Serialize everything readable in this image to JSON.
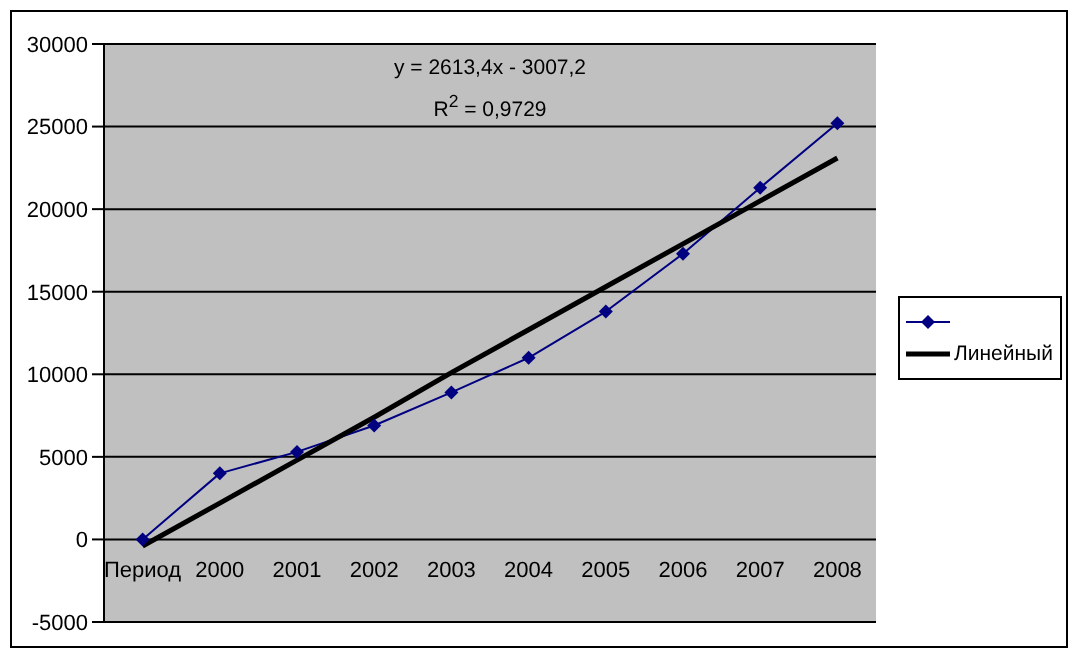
{
  "chart_data": {
    "type": "line",
    "categories": [
      "Период",
      "2000",
      "2001",
      "2002",
      "2003",
      "2004",
      "2005",
      "2006",
      "2007",
      "2008"
    ],
    "series": [
      {
        "color": "#000080",
        "values": [
          0,
          4000,
          5300,
          6900,
          8900,
          11000,
          13800,
          17300,
          21300,
          25200
        ]
      },
      {
        "name": "Линейный",
        "color": "#000000",
        "marker": "none",
        "values": [
          -400,
          2200,
          4800,
          7400,
          10100,
          12700,
          15300,
          17900,
          20500,
          23100
        ]
      }
    ],
    "ylim": [
      -5000,
      30000
    ],
    "yticks": [
      -5000,
      0,
      5000,
      10000,
      15000,
      20000,
      25000,
      30000
    ],
    "grid": "y",
    "legend": "right",
    "marker": "diamond",
    "annotations": [
      "y = 2613,4x - 3007,2",
      "R$^{2}$ = 0,9729"
    ]
  }
}
